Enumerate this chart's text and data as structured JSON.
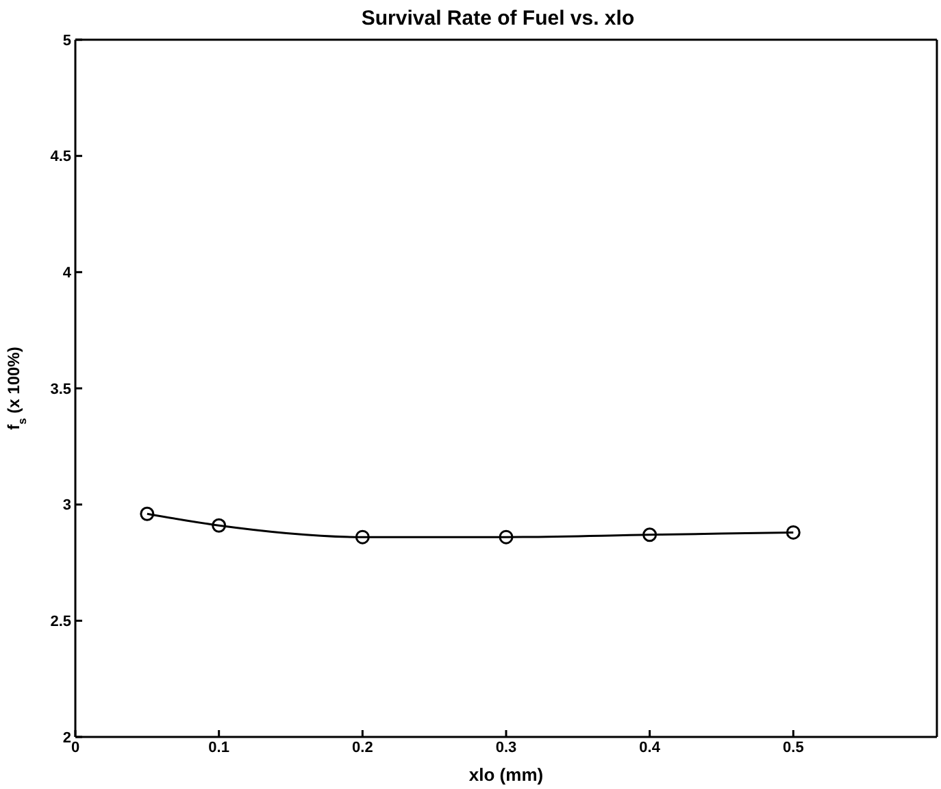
{
  "chart_data": {
    "type": "line",
    "title": "Survival Rate of Fuel vs. xlo",
    "xlabel": "xlo (mm)",
    "ylabel": "f$_{s}$ (x 100%)",
    "x": [
      0.05,
      0.1,
      0.2,
      0.3,
      0.4,
      0.5
    ],
    "series": [
      {
        "color": "#000000",
        "values": [
          2.96,
          2.91,
          2.86,
          2.86,
          2.87,
          2.88
        ]
      }
    ],
    "xlim": [
      0,
      0.6
    ],
    "xticks": [
      0,
      0.1,
      0.2,
      0.3,
      0.4,
      0.5
    ],
    "ylim": [
      2,
      5
    ],
    "yticks": [
      2,
      2.5,
      3,
      3.5,
      4,
      4.5,
      5
    ],
    "marker": "circle",
    "line_style": "solid"
  }
}
